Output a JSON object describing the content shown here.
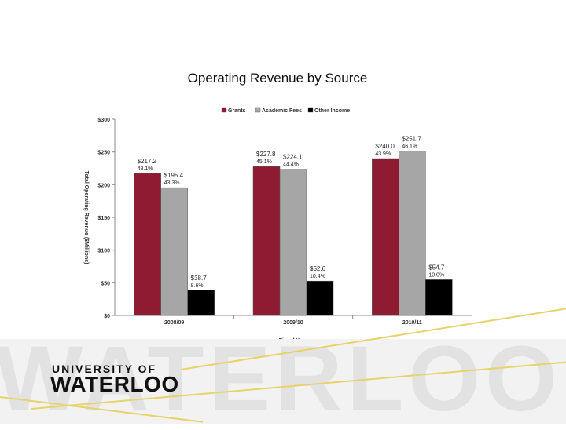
{
  "slide": {
    "title": "Operating Revenue by Source",
    "logo_small": "UNIVERSITY OF",
    "logo_big": "WATERLOO",
    "watermark": "WATERLOO"
  },
  "colors": {
    "grants": "#8e1b32",
    "academic_fees": "#a6a6a6",
    "other_income": "#000000"
  },
  "chart_data": {
    "type": "bar",
    "title": "",
    "xlabel": "Fiscal Year",
    "ylabel": "Total Operating Revenue ($Millions)",
    "categories": [
      "2008/09",
      "2009/10",
      "2010/11"
    ],
    "ylim": [
      0,
      300
    ],
    "yticks": [
      0,
      50,
      100,
      150,
      200,
      250,
      300
    ],
    "ytick_labels": [
      "$0",
      "$50",
      "$100",
      "$150",
      "$200",
      "$250",
      "$300"
    ],
    "legend_position": "top",
    "grid": false,
    "series": [
      {
        "name": "Grants",
        "color": "#8e1b32",
        "values": [
          217.2,
          227.8,
          240.0
        ],
        "value_labels": [
          "$217.2",
          "$227.8",
          "$240.0"
        ],
        "pct_labels": [
          "48.1%",
          "45.1%",
          "43.9%"
        ]
      },
      {
        "name": "Academic Fees",
        "color": "#a6a6a6",
        "values": [
          195.4,
          224.1,
          251.7
        ],
        "value_labels": [
          "$195.4",
          "$224.1",
          "$251.7"
        ],
        "pct_labels": [
          "43.3%",
          "44.4%",
          "46.1%"
        ]
      },
      {
        "name": "Other Income",
        "color": "#000000",
        "values": [
          38.7,
          52.6,
          54.7
        ],
        "value_labels": [
          "$38.7",
          "$52.6",
          "$54.7"
        ],
        "pct_labels": [
          "8.6%",
          "10.4%",
          "10.0%"
        ]
      }
    ]
  }
}
